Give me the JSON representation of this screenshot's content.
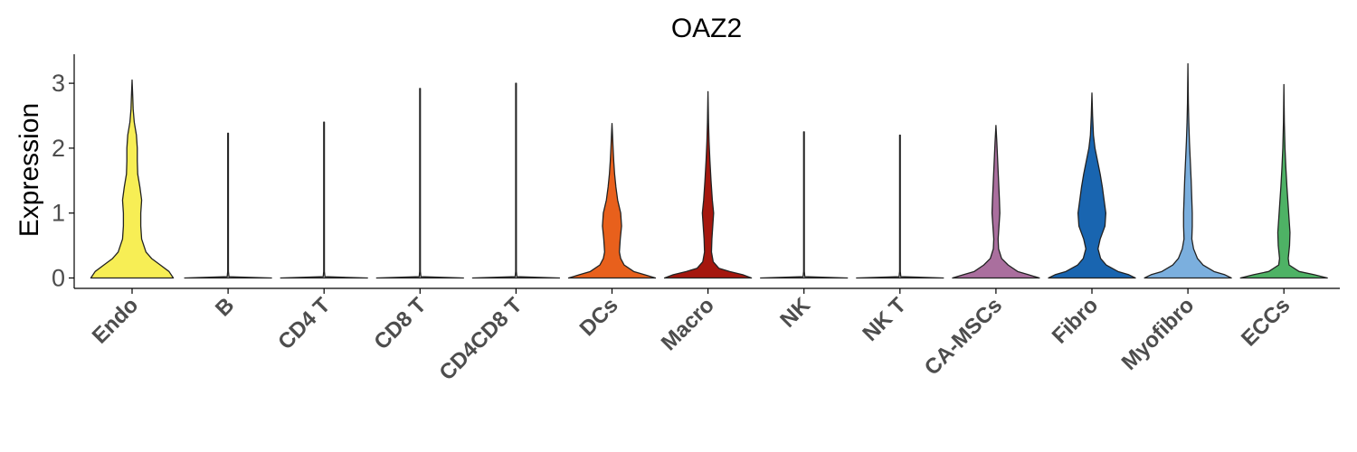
{
  "chart_data": {
    "type": "violin",
    "title": "OAZ2",
    "xlabel": "",
    "ylabel": "Expression",
    "ylim": [
      -0.15,
      3.45
    ],
    "yticks": [
      0,
      1,
      2,
      3
    ],
    "grid": false,
    "legend": "none",
    "categories": [
      "Endo",
      "B",
      "CD4 T",
      "CD8 T",
      "CD4CD8 T",
      "DCs",
      "Macro",
      "NK",
      "NK T",
      "CA-MSCs",
      "Fibro",
      "Myofibro",
      "ECCs"
    ],
    "colors": [
      "#F7EE55",
      "#D9D9D9",
      "#D9D9D9",
      "#D9D9D9",
      "#D9D9D9",
      "#E8601C",
      "#A5170E",
      "#D9D9D9",
      "#D9D9D9",
      "#AA6F9E",
      "#1965B0",
      "#7BAFDE",
      "#4EB265"
    ],
    "series": [
      {
        "name": "Endo",
        "max": 3.05,
        "density": [
          [
            0,
            0.95
          ],
          [
            0.1,
            0.85
          ],
          [
            0.2,
            0.65
          ],
          [
            0.3,
            0.45
          ],
          [
            0.4,
            0.32
          ],
          [
            0.6,
            0.22
          ],
          [
            0.8,
            0.2
          ],
          [
            1.0,
            0.2
          ],
          [
            1.2,
            0.22
          ],
          [
            1.4,
            0.18
          ],
          [
            1.6,
            0.13
          ],
          [
            1.8,
            0.12
          ],
          [
            2.0,
            0.12
          ],
          [
            2.2,
            0.1
          ],
          [
            2.4,
            0.05
          ],
          [
            2.6,
            0.025
          ],
          [
            2.8,
            0.015
          ],
          [
            3.05,
            0
          ]
        ]
      },
      {
        "name": "B",
        "max": 2.23,
        "density": [
          [
            0,
            1.0
          ],
          [
            0.02,
            0.02
          ],
          [
            0.1,
            0.008
          ],
          [
            2.23,
            0.008
          ]
        ]
      },
      {
        "name": "CD4 T",
        "max": 2.4,
        "density": [
          [
            0,
            1.0
          ],
          [
            0.02,
            0.02
          ],
          [
            0.1,
            0.008
          ],
          [
            2.4,
            0.008
          ]
        ]
      },
      {
        "name": "CD8 T",
        "max": 2.92,
        "density": [
          [
            0,
            1.0
          ],
          [
            0.02,
            0.02
          ],
          [
            0.1,
            0.008
          ],
          [
            2.92,
            0.008
          ]
        ]
      },
      {
        "name": "CD4CD8 T",
        "max": 3.0,
        "density": [
          [
            0,
            1.0
          ],
          [
            0.02,
            0.02
          ],
          [
            0.1,
            0.008
          ],
          [
            3.0,
            0.008
          ]
        ]
      },
      {
        "name": "DCs",
        "max": 2.38,
        "density": [
          [
            0,
            1.0
          ],
          [
            0.05,
            0.75
          ],
          [
            0.1,
            0.5
          ],
          [
            0.2,
            0.28
          ],
          [
            0.3,
            0.2
          ],
          [
            0.4,
            0.17
          ],
          [
            0.6,
            0.19
          ],
          [
            0.8,
            0.22
          ],
          [
            1.0,
            0.2
          ],
          [
            1.2,
            0.13
          ],
          [
            1.4,
            0.09
          ],
          [
            1.6,
            0.06
          ],
          [
            1.8,
            0.04
          ],
          [
            2.0,
            0.025
          ],
          [
            2.2,
            0.012
          ],
          [
            2.38,
            0
          ]
        ]
      },
      {
        "name": "Macro",
        "max": 2.87,
        "density": [
          [
            0,
            1.0
          ],
          [
            0.05,
            0.8
          ],
          [
            0.1,
            0.5
          ],
          [
            0.15,
            0.25
          ],
          [
            0.25,
            0.12
          ],
          [
            0.4,
            0.08
          ],
          [
            0.6,
            0.09
          ],
          [
            0.8,
            0.11
          ],
          [
            1.0,
            0.13
          ],
          [
            1.2,
            0.1
          ],
          [
            1.5,
            0.07
          ],
          [
            1.8,
            0.045
          ],
          [
            2.1,
            0.025
          ],
          [
            2.4,
            0.012
          ],
          [
            2.87,
            0
          ]
        ]
      },
      {
        "name": "NK",
        "max": 2.25,
        "density": [
          [
            0,
            1.0
          ],
          [
            0.02,
            0.02
          ],
          [
            0.1,
            0.008
          ],
          [
            2.25,
            0.008
          ]
        ]
      },
      {
        "name": "NK T",
        "max": 2.2,
        "density": [
          [
            0,
            1.0
          ],
          [
            0.02,
            0.02
          ],
          [
            0.1,
            0.008
          ],
          [
            2.2,
            0.008
          ]
        ]
      },
      {
        "name": "CA-MSCs",
        "max": 2.35,
        "density": [
          [
            0,
            1.0
          ],
          [
            0.05,
            0.75
          ],
          [
            0.1,
            0.5
          ],
          [
            0.2,
            0.28
          ],
          [
            0.3,
            0.13
          ],
          [
            0.45,
            0.06
          ],
          [
            0.6,
            0.05
          ],
          [
            0.8,
            0.07
          ],
          [
            1.0,
            0.09
          ],
          [
            1.2,
            0.08
          ],
          [
            1.5,
            0.06
          ],
          [
            1.8,
            0.04
          ],
          [
            2.1,
            0.02
          ],
          [
            2.35,
            0
          ]
        ]
      },
      {
        "name": "Fibro",
        "max": 2.85,
        "density": [
          [
            0,
            1.0
          ],
          [
            0.05,
            0.85
          ],
          [
            0.1,
            0.6
          ],
          [
            0.2,
            0.33
          ],
          [
            0.3,
            0.2
          ],
          [
            0.45,
            0.14
          ],
          [
            0.6,
            0.19
          ],
          [
            0.8,
            0.3
          ],
          [
            1.0,
            0.32
          ],
          [
            1.2,
            0.28
          ],
          [
            1.4,
            0.24
          ],
          [
            1.6,
            0.19
          ],
          [
            1.8,
            0.13
          ],
          [
            2.0,
            0.07
          ],
          [
            2.2,
            0.035
          ],
          [
            2.5,
            0.015
          ],
          [
            2.85,
            0
          ]
        ]
      },
      {
        "name": "Myofibro",
        "max": 3.3,
        "density": [
          [
            0,
            1.0
          ],
          [
            0.05,
            0.85
          ],
          [
            0.1,
            0.6
          ],
          [
            0.2,
            0.35
          ],
          [
            0.3,
            0.22
          ],
          [
            0.45,
            0.13
          ],
          [
            0.6,
            0.09
          ],
          [
            0.8,
            0.1
          ],
          [
            1.0,
            0.1
          ],
          [
            1.2,
            0.09
          ],
          [
            1.5,
            0.075
          ],
          [
            1.8,
            0.055
          ],
          [
            2.1,
            0.035
          ],
          [
            2.4,
            0.02
          ],
          [
            2.7,
            0.01
          ],
          [
            3.3,
            0
          ]
        ]
      },
      {
        "name": "ECCs",
        "max": 2.98,
        "density": [
          [
            0,
            1.0
          ],
          [
            0.05,
            0.7
          ],
          [
            0.1,
            0.35
          ],
          [
            0.2,
            0.12
          ],
          [
            0.3,
            0.1
          ],
          [
            0.5,
            0.13
          ],
          [
            0.7,
            0.14
          ],
          [
            0.9,
            0.12
          ],
          [
            1.1,
            0.1
          ],
          [
            1.4,
            0.07
          ],
          [
            1.7,
            0.045
          ],
          [
            2.0,
            0.025
          ],
          [
            2.4,
            0.01
          ],
          [
            2.98,
            0
          ]
        ]
      }
    ]
  }
}
